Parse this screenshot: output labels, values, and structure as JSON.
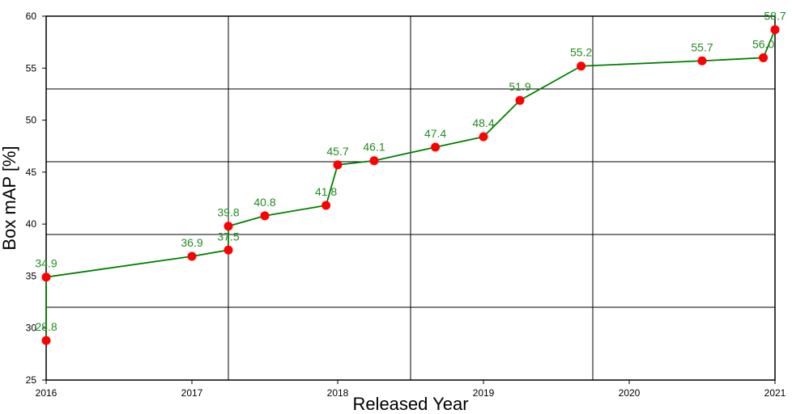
{
  "chart_data": {
    "type": "line",
    "xlabel": "Released Year",
    "ylabel": "Box mAP [%]",
    "xlim": [
      2016,
      2021
    ],
    "ylim": [
      25,
      60
    ],
    "x_ticks": [
      "2016",
      "2017",
      "2018",
      "2019",
      "2020",
      "2021"
    ],
    "y_ticks": [
      "25",
      "30",
      "35",
      "40",
      "45",
      "50",
      "55",
      "60"
    ],
    "grid": true,
    "colors": {
      "line": "#008000",
      "marker": "#ff0000",
      "label": "#228b22",
      "grid": "#000000"
    },
    "points": [
      {
        "x": 2016.0,
        "y": 28.8,
        "label": "28.8"
      },
      {
        "x": 2016.0,
        "y": 34.9,
        "label": "34.9"
      },
      {
        "x": 2017.0,
        "y": 36.9,
        "label": "36.9"
      },
      {
        "x": 2017.25,
        "y": 37.5,
        "label": "37.5"
      },
      {
        "x": 2017.25,
        "y": 39.8,
        "label": "39.8"
      },
      {
        "x": 2017.5,
        "y": 40.8,
        "label": "40.8"
      },
      {
        "x": 2017.92,
        "y": 41.8,
        "label": "41.8"
      },
      {
        "x": 2018.0,
        "y": 45.7,
        "label": "45.7"
      },
      {
        "x": 2018.25,
        "y": 46.1,
        "label": "46.1"
      },
      {
        "x": 2018.67,
        "y": 47.4,
        "label": "47.4"
      },
      {
        "x": 2019.0,
        "y": 48.4,
        "label": "48.4"
      },
      {
        "x": 2019.25,
        "y": 51.9,
        "label": "51.9"
      },
      {
        "x": 2019.67,
        "y": 55.2,
        "label": "55.2"
      },
      {
        "x": 2020.5,
        "y": 55.7,
        "label": "55.7"
      },
      {
        "x": 2020.92,
        "y": 56.0,
        "label": "56.0"
      },
      {
        "x": 2021.0,
        "y": 58.7,
        "label": "58.7"
      }
    ]
  }
}
